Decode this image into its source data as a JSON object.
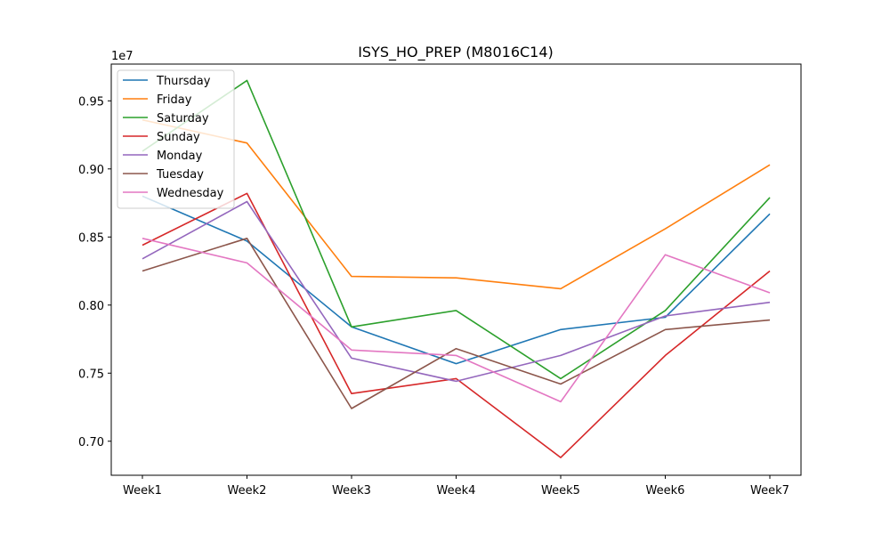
{
  "chart_data": {
    "type": "line",
    "title": "ISYS_HO_PREP (M8016C14)",
    "xlabel": "",
    "ylabel": "",
    "offset_label": "1e7",
    "categories": [
      "Week1",
      "Week2",
      "Week3",
      "Week4",
      "Week5",
      "Week6",
      "Week7"
    ],
    "ylim": [
      6.75,
      9.77
    ],
    "yticks": [
      7.0,
      7.5,
      8.0,
      8.5,
      9.0,
      9.5
    ],
    "ytick_labels": [
      "0.70",
      "0.75",
      "0.80",
      "0.85",
      "0.90",
      "0.95"
    ],
    "grid": false,
    "legend_position": "top-left",
    "series": [
      {
        "name": "Thursday",
        "color": "#1f77b4",
        "values": [
          8.8,
          8.47,
          7.84,
          7.57,
          7.82,
          7.91,
          8.67
        ]
      },
      {
        "name": "Friday",
        "color": "#ff7f0e",
        "values": [
          9.36,
          9.19,
          8.21,
          8.2,
          8.12,
          8.56,
          9.03
        ]
      },
      {
        "name": "Saturday",
        "color": "#2ca02c",
        "values": [
          9.13,
          9.65,
          7.84,
          7.96,
          7.46,
          7.96,
          8.79
        ]
      },
      {
        "name": "Sunday",
        "color": "#d62728",
        "values": [
          8.44,
          8.82,
          7.35,
          7.46,
          6.88,
          7.63,
          8.25
        ]
      },
      {
        "name": "Monday",
        "color": "#9467bd",
        "values": [
          8.34,
          8.76,
          7.61,
          7.44,
          7.63,
          7.92,
          8.02
        ]
      },
      {
        "name": "Tuesday",
        "color": "#8c564b",
        "values": [
          8.25,
          8.49,
          7.24,
          7.68,
          7.42,
          7.82,
          7.89
        ]
      },
      {
        "name": "Wednesday",
        "color": "#e377c2",
        "values": [
          8.49,
          8.31,
          7.67,
          7.63,
          7.29,
          8.37,
          8.09
        ]
      }
    ]
  }
}
